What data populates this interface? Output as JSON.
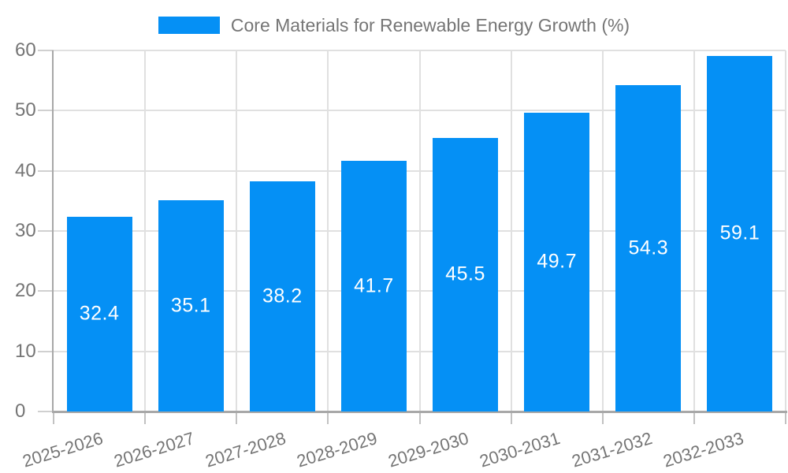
{
  "chart_data": {
    "type": "bar",
    "title": "",
    "legend": {
      "label": "Core Materials for Renewable Energy Growth (%)",
      "position": "top"
    },
    "categories": [
      "2025-2026",
      "2026-2027",
      "2027-2028",
      "2028-2029",
      "2029-2030",
      "2030-2031",
      "2031-2032",
      "2032-2033"
    ],
    "series": [
      {
        "name": "Core Materials for Renewable Energy Growth (%)",
        "values": [
          32.4,
          35.1,
          38.2,
          41.7,
          45.5,
          49.7,
          54.3,
          59.1
        ]
      }
    ],
    "value_labels": [
      "32.4",
      "35.1",
      "38.2",
      "41.7",
      "45.5",
      "49.7",
      "54.3",
      "59.1"
    ],
    "xlabel": "",
    "ylabel": "",
    "ylim": [
      0,
      60
    ],
    "yticks": [
      0,
      10,
      20,
      30,
      40,
      50,
      60
    ],
    "grid": true,
    "grid_style": "horizontal-and-category-boundaries",
    "colors": {
      "bar": "#0590F5",
      "bar_label": "#FFFFFF",
      "grid_line": "#E0E0E0",
      "axis_line": "#A8A8A8",
      "tick_mark": "#D0D0D0",
      "x_tick_mark": "#C2C2C2",
      "label_text": "#757575",
      "background": "#FFFFFF"
    }
  }
}
